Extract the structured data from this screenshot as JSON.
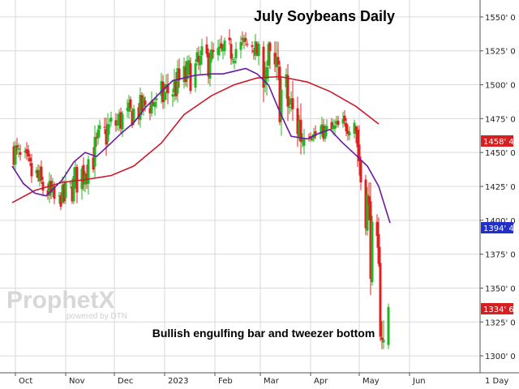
{
  "chart_data": {
    "type": "candlestick",
    "title": "July Soybeans Daily",
    "annotation": "Bullish engulfing bar and tweezer bottom",
    "interval": "1 Day",
    "watermark": {
      "brand": "ProphetX",
      "byline": "powered by DTN"
    },
    "ylim": [
      1287.5,
      1562.5
    ],
    "y_ticks": [
      "1300' 0",
      "1325' 0",
      "1350' 0",
      "1375' 0",
      "1400' 0",
      "1425' 0",
      "1450' 0",
      "1475' 0",
      "1500' 0",
      "1525' 0",
      "1550' 0"
    ],
    "y_tick_values": [
      1300,
      1325,
      1350,
      1375,
      1400,
      1425,
      1450,
      1475,
      1500,
      1525,
      1550
    ],
    "x_labels": [
      "Oct",
      "Nov",
      "Dec",
      "2023",
      "Feb",
      "Mar",
      "Apr",
      "May",
      "Jun"
    ],
    "price_tags": [
      {
        "label": "1458' 4",
        "value": 1458.5,
        "color": "#d42020"
      },
      {
        "label": "1394' 4",
        "value": 1394.5,
        "color": "#2030c8"
      },
      {
        "label": "1334' 6",
        "value": 1334.75,
        "color": "#d42020"
      }
    ],
    "colors": {
      "up": "#22b422",
      "down": "#e02020",
      "ma_long": "#cc1a2a",
      "ma_short": "#6a1aa0",
      "grid": "#d9d9d9"
    },
    "series": [
      {
        "type": "moving_average",
        "color": "#cc1a2a",
        "x": [
          "Oct 1",
          "Oct 15",
          "Nov 1",
          "Nov 15",
          "Dec 1",
          "Dec 15",
          "Jan 1",
          "Jan 15",
          "Feb 1",
          "Feb 15",
          "Mar 1",
          "Mar 15",
          "Apr 1",
          "Apr 15",
          "May 1",
          "May 15"
        ],
        "values": [
          1413,
          1422,
          1428,
          1430,
          1433,
          1440,
          1457,
          1478,
          1492,
          1500,
          1505,
          1506,
          1502,
          1495,
          1484,
          1471
        ]
      },
      {
        "type": "moving_average",
        "color": "#6a1aa0",
        "x": [
          "Oct 1",
          "Oct 8",
          "Oct 15",
          "Oct 22",
          "Nov 1",
          "Nov 8",
          "Nov 15",
          "Nov 22",
          "Dec 1",
          "Dec 8",
          "Dec 15",
          "Dec 22",
          "Jan 1",
          "Jan 8",
          "Jan 15",
          "Jan 22",
          "Feb 1",
          "Feb 8",
          "Feb 15",
          "Feb 22",
          "Mar 1",
          "Mar 8",
          "Mar 15",
          "Mar 22",
          "Apr 1",
          "Apr 8",
          "Apr 15",
          "Apr 22",
          "May 1",
          "May 8",
          "May 15",
          "May 22"
        ],
        "values": [
          1440,
          1427,
          1420,
          1418,
          1430,
          1443,
          1450,
          1447,
          1457,
          1465,
          1472,
          1483,
          1495,
          1503,
          1505,
          1507,
          1508,
          1508,
          1510,
          1512,
          1508,
          1500,
          1480,
          1462,
          1460,
          1464,
          1467,
          1458,
          1448,
          1440,
          1425,
          1398
        ]
      }
    ],
    "candles": [
      {
        "period": "Oct",
        "open": 1452,
        "high": 1463,
        "low": 1400,
        "close": 1410,
        "direction": "down"
      },
      {
        "period": "Nov",
        "open": 1412,
        "high": 1493,
        "low": 1412,
        "close": 1470,
        "direction": "up"
      },
      {
        "period": "Dec",
        "open": 1470,
        "high": 1503,
        "low": 1442,
        "close": 1490,
        "direction": "up"
      },
      {
        "period": "Jan",
        "open": 1490,
        "high": 1545,
        "low": 1467,
        "close": 1520,
        "direction": "up"
      },
      {
        "period": "Feb",
        "open": 1520,
        "high": 1545,
        "low": 1490,
        "close": 1532,
        "direction": "up"
      },
      {
        "period": "Mar",
        "open": 1528,
        "high": 1532,
        "low": 1387,
        "close": 1460,
        "direction": "down"
      },
      {
        "period": "Apr",
        "open": 1460,
        "high": 1502,
        "low": 1458,
        "close": 1472,
        "direction": "up"
      },
      {
        "period": "May",
        "open": 1470,
        "high": 1470,
        "low": 1305,
        "close": 1312,
        "direction": "down"
      },
      {
        "period": "May (last bar)",
        "open": 1308,
        "high": 1345,
        "low": 1305,
        "close": 1336,
        "direction": "up"
      }
    ]
  }
}
